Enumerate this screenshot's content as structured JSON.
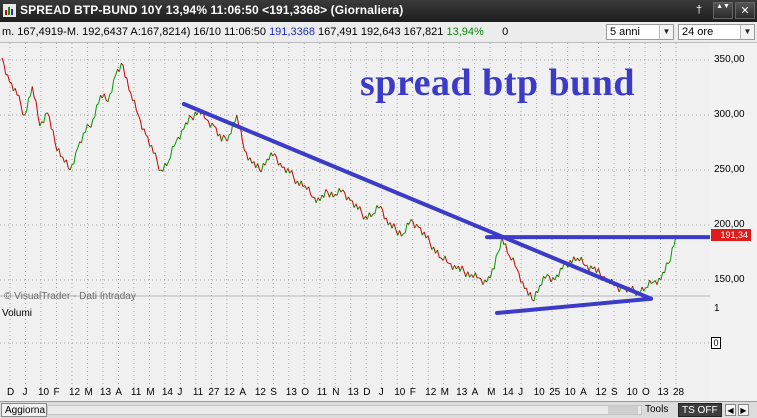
{
  "titlebar": {
    "title": "SPREAD BTP-BUND 10Y 13,94% 11:06:50  <191,3368>  (Giornaliera)",
    "pin_glyph": "†",
    "scroll_glyph": "▲▼",
    "close_glyph": "✕"
  },
  "toolbar": {
    "quote_prefix": "m. 167,4919-M. 192,6437 A:167,8214)  16/10 11:06:50",
    "quote_last": "191,3368",
    "quote_ohl": "167,491 192,643 167,821",
    "quote_pct": "13,94%",
    "quote_vol": "0",
    "period_select": "5 anni",
    "interval_select": "24 ore",
    "dropdown_glyph": "▼"
  },
  "chart": {
    "annotation": "spread btp bund",
    "watermark": "© VisualTrader - Dati Intraday",
    "volume_label": "Volumi",
    "price_badge": "191,34",
    "volume_ticks": [
      "1",
      "0"
    ],
    "colors": {
      "up": "#009900",
      "down": "#cc0000",
      "trendline": "#3b3bc8",
      "grid": "#a0a0a0"
    }
  },
  "chart_data": {
    "type": "line",
    "title": "SPREAD BTP-BUND 10Y",
    "y_ticks": [
      "350,00",
      "300,00",
      "250,00",
      "200,00",
      "150,00"
    ],
    "ylim": [
      120,
      360
    ],
    "x_ticks": [
      "D",
      "J",
      "10",
      "F",
      "12",
      "M",
      "13",
      "A",
      "11",
      "M",
      "14",
      "J",
      "11",
      "27",
      "12",
      "A",
      "12",
      "S",
      "13",
      "O",
      "11",
      "N",
      "13",
      "D",
      "J",
      "10",
      "F",
      "12",
      "M",
      "13",
      "A",
      "M",
      "14",
      "J",
      "10",
      "25",
      "10",
      "A",
      "12",
      "S",
      "10",
      "O",
      "13",
      "28"
    ],
    "series": [
      {
        "values": [
          352,
          330,
          318,
          300,
          326,
          290,
          302,
          275,
          262,
          250,
          270,
          284,
          296,
          318,
          312,
          336,
          345,
          320,
          300,
          282,
          265,
          250,
          258,
          276,
          287,
          298,
          305,
          296,
          290,
          276,
          282,
          300,
          268,
          256,
          250,
          260,
          265,
          252,
          247,
          240,
          236,
          225,
          222,
          230,
          228,
          232,
          222,
          214,
          208,
          210,
          217,
          200,
          196,
          192,
          205,
          198,
          188,
          180,
          170,
          165,
          160,
          158,
          155,
          152,
          148,
          160,
          190,
          172,
          160,
          142,
          132,
          145,
          155,
          150,
          160,
          168,
          170,
          163,
          160,
          155,
          150,
          145,
          142,
          140,
          140,
          143,
          148,
          150,
          165,
          191
        ]
      }
    ],
    "trendlines": [
      {
        "from": [
          0.259,
          310
        ],
        "to": [
          0.917,
          133
        ]
      },
      {
        "from": [
          0.686,
          189
        ],
        "to": [
          1.0,
          189
        ]
      },
      {
        "from": [
          0.7,
          120
        ],
        "to": [
          0.917,
          133
        ]
      }
    ]
  },
  "bottombar": {
    "update_label": "Aggiorna",
    "tools_label": "Tools",
    "tsoff_label": "TS OFF",
    "left_arrow": "◀",
    "right_arrow": "▶"
  }
}
